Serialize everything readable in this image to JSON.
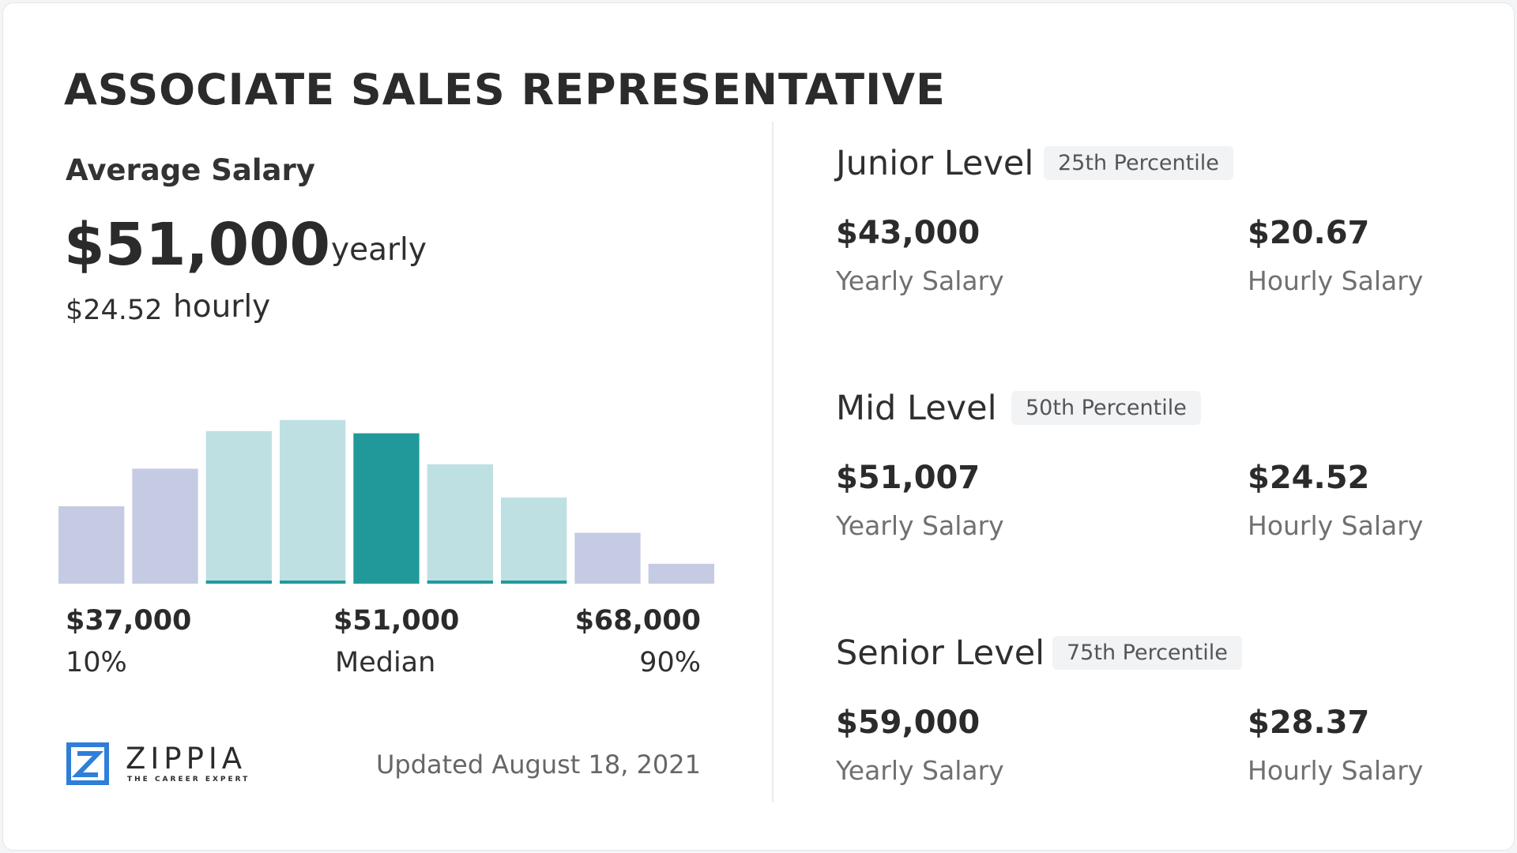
{
  "title": "ASSOCIATE SALES REPRESENTATIVE",
  "average": {
    "label": "Average Salary",
    "yearly": "$51,000",
    "yearly_unit": "yearly",
    "hourly": "$24.52",
    "hourly_unit": "hourly"
  },
  "chart_data": {
    "type": "bar",
    "categories": [
      "1",
      "2",
      "3",
      "4",
      "5",
      "6",
      "7",
      "8",
      "9"
    ],
    "values": [
      35,
      52,
      69,
      74,
      68,
      54,
      39,
      23,
      9
    ],
    "highlight_index": 4,
    "ylim": [
      0,
      100
    ],
    "colors": {
      "outer": "#c5cbe2",
      "inner": "#bfe0e3",
      "median": "#21999a",
      "underline": "#21999a"
    },
    "axis": [
      {
        "value": "$37,000",
        "label": "10%",
        "align": "left"
      },
      {
        "value": "$51,000",
        "label": "Median",
        "align": "center"
      },
      {
        "value": "$68,000",
        "label": "90%",
        "align": "right"
      }
    ]
  },
  "logo": {
    "name": "ZIPPIA",
    "tagline": "THE CAREER EXPERT",
    "color": "#2f7ed8"
  },
  "updated": "Updated August 18, 2021",
  "levels": [
    {
      "title": "Junior Level",
      "percentile": "25th Percentile",
      "yearly": "$43,000",
      "yearly_label": "Yearly Salary",
      "hourly": "$20.67",
      "hourly_label": "Hourly Salary"
    },
    {
      "title": "Mid Level",
      "percentile": "50th Percentile",
      "yearly": "$51,007",
      "yearly_label": "Yearly Salary",
      "hourly": "$24.52",
      "hourly_label": "Hourly Salary"
    },
    {
      "title": "Senior Level",
      "percentile": "75th Percentile",
      "yearly": "$59,000",
      "yearly_label": "Yearly Salary",
      "hourly": "$28.37",
      "hourly_label": "Hourly Salary"
    }
  ]
}
